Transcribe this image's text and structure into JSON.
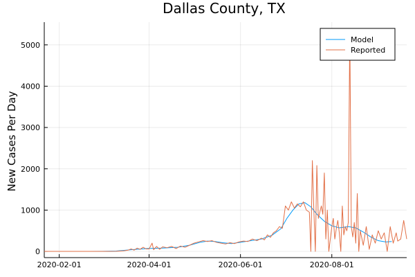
{
  "chart_data": {
    "type": "line",
    "title": "Dallas County, TX",
    "xlabel": "",
    "ylabel": "New Cases Per Day",
    "x_range": [
      "2020-01-22",
      "2020-09-20"
    ],
    "ylim": [
      -150,
      5550
    ],
    "x_ticks": [
      "2020-02-01",
      "2020-04-01",
      "2020-06-01",
      "2020-08-01"
    ],
    "y_ticks": [
      0,
      1000,
      2000,
      3000,
      4000,
      5000
    ],
    "grid": true,
    "legend_position": "top-right",
    "series": [
      {
        "name": "Model",
        "color": "#009AFA",
        "points": [
          [
            "2020-01-22",
            0
          ],
          [
            "2020-02-15",
            0
          ],
          [
            "2020-03-01",
            2
          ],
          [
            "2020-03-10",
            10
          ],
          [
            "2020-03-20",
            40
          ],
          [
            "2020-03-31",
            70
          ],
          [
            "2020-04-10",
            80
          ],
          [
            "2020-04-20",
            100
          ],
          [
            "2020-04-28",
            150
          ],
          [
            "2020-05-05",
            220
          ],
          [
            "2020-05-10",
            250
          ],
          [
            "2020-05-15",
            240
          ],
          [
            "2020-05-20",
            210
          ],
          [
            "2020-05-26",
            190
          ],
          [
            "2020-06-01",
            220
          ],
          [
            "2020-06-08",
            260
          ],
          [
            "2020-06-15",
            300
          ],
          [
            "2020-06-22",
            390
          ],
          [
            "2020-06-28",
            550
          ],
          [
            "2020-07-02",
            800
          ],
          [
            "2020-07-06",
            1000
          ],
          [
            "2020-07-10",
            1150
          ],
          [
            "2020-07-14",
            1180
          ],
          [
            "2020-07-18",
            1080
          ],
          [
            "2020-07-22",
            900
          ],
          [
            "2020-07-27",
            730
          ],
          [
            "2020-08-01",
            620
          ],
          [
            "2020-08-06",
            570
          ],
          [
            "2020-08-12",
            600
          ],
          [
            "2020-08-17",
            570
          ],
          [
            "2020-08-22",
            470
          ],
          [
            "2020-08-27",
            350
          ],
          [
            "2020-09-01",
            260
          ],
          [
            "2020-09-06",
            230
          ],
          [
            "2020-09-10",
            240
          ]
        ]
      },
      {
        "name": "Reported",
        "color": "#E26F46",
        "points": [
          [
            "2020-01-22",
            0
          ],
          [
            "2020-03-05",
            0
          ],
          [
            "2020-03-10",
            2
          ],
          [
            "2020-03-15",
            15
          ],
          [
            "2020-03-18",
            30
          ],
          [
            "2020-03-20",
            60
          ],
          [
            "2020-03-22",
            30
          ],
          [
            "2020-03-24",
            80
          ],
          [
            "2020-03-26",
            50
          ],
          [
            "2020-03-28",
            100
          ],
          [
            "2020-03-30",
            60
          ],
          [
            "2020-04-01",
            60
          ],
          [
            "2020-04-03",
            200
          ],
          [
            "2020-04-04",
            40
          ],
          [
            "2020-04-06",
            120
          ],
          [
            "2020-04-08",
            50
          ],
          [
            "2020-04-10",
            110
          ],
          [
            "2020-04-13",
            90
          ],
          [
            "2020-04-16",
            120
          ],
          [
            "2020-04-19",
            70
          ],
          [
            "2020-04-22",
            130
          ],
          [
            "2020-04-25",
            100
          ],
          [
            "2020-04-28",
            150
          ],
          [
            "2020-05-01",
            200
          ],
          [
            "2020-05-04",
            230
          ],
          [
            "2020-05-07",
            260
          ],
          [
            "2020-05-10",
            240
          ],
          [
            "2020-05-13",
            260
          ],
          [
            "2020-05-16",
            220
          ],
          [
            "2020-05-19",
            200
          ],
          [
            "2020-05-22",
            180
          ],
          [
            "2020-05-25",
            210
          ],
          [
            "2020-05-28",
            190
          ],
          [
            "2020-05-31",
            230
          ],
          [
            "2020-06-03",
            250
          ],
          [
            "2020-06-06",
            240
          ],
          [
            "2020-06-09",
            300
          ],
          [
            "2020-06-12",
            260
          ],
          [
            "2020-06-15",
            320
          ],
          [
            "2020-06-17",
            280
          ],
          [
            "2020-06-19",
            400
          ],
          [
            "2020-06-21",
            340
          ],
          [
            "2020-06-23",
            450
          ],
          [
            "2020-06-25",
            500
          ],
          [
            "2020-06-27",
            600
          ],
          [
            "2020-06-29",
            560
          ],
          [
            "2020-07-01",
            1100
          ],
          [
            "2020-07-03",
            1000
          ],
          [
            "2020-07-05",
            1200
          ],
          [
            "2020-07-07",
            1050
          ],
          [
            "2020-07-09",
            1150
          ],
          [
            "2020-07-11",
            1080
          ],
          [
            "2020-07-13",
            1200
          ],
          [
            "2020-07-15",
            1000
          ],
          [
            "2020-07-17",
            950
          ],
          [
            "2020-07-18",
            0
          ],
          [
            "2020-07-19",
            2200
          ],
          [
            "2020-07-20",
            1000
          ],
          [
            "2020-07-21",
            0
          ],
          [
            "2020-07-22",
            2080
          ],
          [
            "2020-07-23",
            800
          ],
          [
            "2020-07-25",
            1100
          ],
          [
            "2020-07-26",
            900
          ],
          [
            "2020-07-27",
            1900
          ],
          [
            "2020-07-28",
            300
          ],
          [
            "2020-07-29",
            1000
          ],
          [
            "2020-07-30",
            0
          ],
          [
            "2020-08-01",
            600
          ],
          [
            "2020-08-02",
            800
          ],
          [
            "2020-08-03",
            300
          ],
          [
            "2020-08-04",
            550
          ],
          [
            "2020-08-05",
            750
          ],
          [
            "2020-08-06",
            450
          ],
          [
            "2020-08-07",
            0
          ],
          [
            "2020-08-08",
            1100
          ],
          [
            "2020-08-09",
            400
          ],
          [
            "2020-08-10",
            600
          ],
          [
            "2020-08-11",
            500
          ],
          [
            "2020-08-12",
            700
          ],
          [
            "2020-08-13",
            5350
          ],
          [
            "2020-08-14",
            600
          ],
          [
            "2020-08-15",
            350
          ],
          [
            "2020-08-16",
            700
          ],
          [
            "2020-08-17",
            200
          ],
          [
            "2020-08-18",
            1400
          ],
          [
            "2020-08-19",
            0
          ],
          [
            "2020-08-20",
            500
          ],
          [
            "2020-08-22",
            150
          ],
          [
            "2020-08-24",
            600
          ],
          [
            "2020-08-26",
            50
          ],
          [
            "2020-08-28",
            400
          ],
          [
            "2020-08-30",
            200
          ],
          [
            "2020-09-01",
            500
          ],
          [
            "2020-09-03",
            300
          ],
          [
            "2020-09-05",
            450
          ],
          [
            "2020-09-07",
            0
          ],
          [
            "2020-09-09",
            600
          ],
          [
            "2020-09-11",
            200
          ],
          [
            "2020-09-13",
            450
          ],
          [
            "2020-09-14",
            250
          ],
          [
            "2020-09-16",
            300
          ],
          [
            "2020-09-18",
            750
          ],
          [
            "2020-09-20",
            300
          ]
        ]
      }
    ]
  }
}
